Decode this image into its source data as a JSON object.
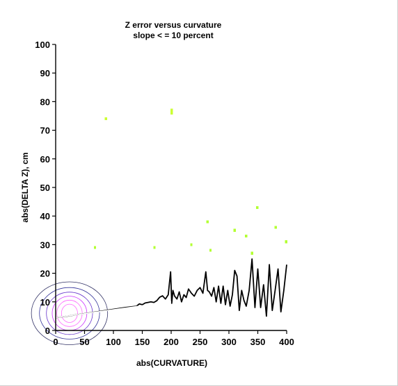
{
  "chart_data": {
    "type": "heatmap",
    "title": "Z error versus curvature",
    "subtitle": "slope < = 10 percent",
    "xlabel": "abs(CURVATURE)",
    "ylabel": "abs(DELTA Z), cm",
    "xlim": [
      0,
      400
    ],
    "ylim": [
      0,
      100
    ],
    "x_ticks": [
      0,
      50,
      100,
      150,
      200,
      250,
      300,
      350,
      400
    ],
    "y_ticks": [
      0,
      10,
      20,
      30,
      40,
      50,
      60,
      70,
      80,
      90,
      100
    ],
    "grid": false,
    "colormap": [
      "#ff00ff",
      "#9900ff",
      "#2222ff",
      "#0099ff",
      "#00ffcc",
      "#66ff33",
      "#ccff33"
    ],
    "density_peak": {
      "x": 20,
      "y": 5
    },
    "outliers": [
      {
        "x": 87,
        "y": 74
      },
      {
        "x": 201,
        "y": 77
      },
      {
        "x": 201,
        "y": 76
      },
      {
        "x": 349,
        "y": 43
      },
      {
        "x": 263,
        "y": 38
      },
      {
        "x": 310,
        "y": 35
      },
      {
        "x": 381,
        "y": 36
      },
      {
        "x": 399,
        "y": 31
      },
      {
        "x": 330,
        "y": 33
      },
      {
        "x": 340,
        "y": 27
      },
      {
        "x": 268,
        "y": 28
      },
      {
        "x": 235,
        "y": 30
      },
      {
        "x": 171,
        "y": 29
      },
      {
        "x": 68,
        "y": 29
      }
    ],
    "mean_line": {
      "name": "",
      "x": [
        0,
        20,
        40,
        60,
        80,
        100,
        120,
        140,
        145,
        150,
        155,
        160,
        165,
        170,
        175,
        180,
        185,
        190,
        195,
        199,
        201,
        203,
        206,
        210,
        214,
        218,
        222,
        226,
        230,
        235,
        240,
        245,
        250,
        255,
        260,
        263,
        266,
        270,
        274,
        278,
        282,
        286,
        290,
        294,
        298,
        302,
        306,
        310,
        314,
        318,
        322,
        326,
        330,
        335,
        340,
        345,
        350,
        355,
        360,
        365,
        370,
        375,
        380,
        385,
        390,
        395,
        400
      ],
      "y": [
        4.5,
        5.0,
        5.6,
        6.2,
        6.8,
        7.4,
        8.0,
        8.5,
        9.3,
        9.0,
        9.6,
        9.8,
        10.0,
        9.8,
        10.4,
        11.6,
        12.1,
        11.0,
        12.5,
        20.5,
        9.5,
        14.0,
        12.0,
        11.0,
        13.5,
        10.0,
        12.5,
        11.5,
        14.5,
        13.0,
        12.0,
        14.0,
        15.0,
        13.0,
        20.5,
        14.0,
        13.5,
        12.0,
        15.0,
        10.0,
        15.5,
        9.5,
        15.5,
        9.0,
        14.0,
        8.5,
        12.5,
        21.0,
        19.0,
        7.0,
        14.0,
        10.5,
        8.5,
        14.0,
        25.0,
        8.0,
        21.5,
        8.0,
        16.0,
        5.0,
        23.0,
        7.0,
        14.0,
        21.5,
        6.5,
        14.0,
        23.0
      ]
    },
    "trend_line": {
      "name": "",
      "x": [
        0,
        200
      ],
      "y": [
        4.5,
        10.0
      ]
    }
  }
}
